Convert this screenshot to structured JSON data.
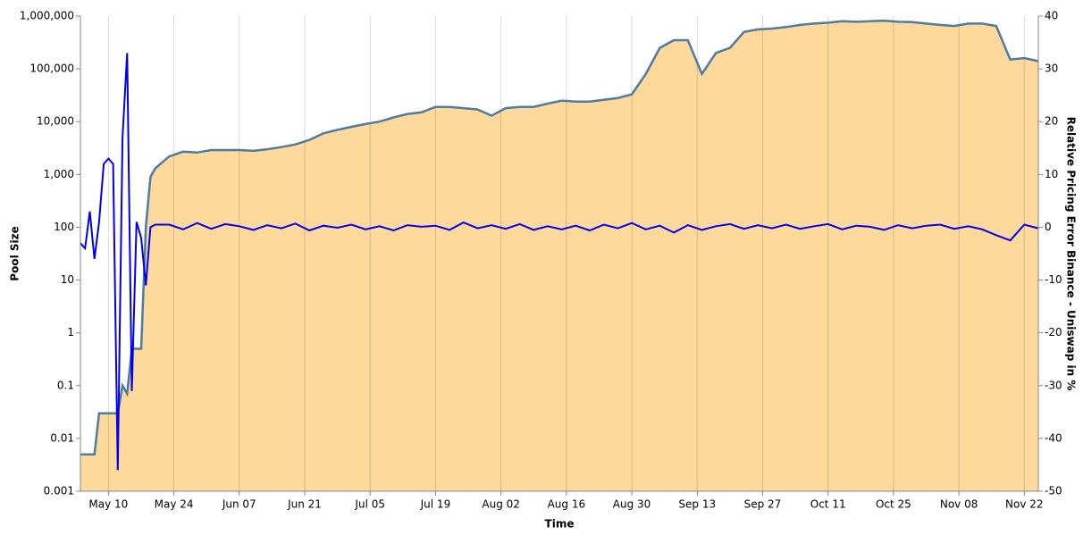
{
  "chart_data": {
    "type": "area-line",
    "x_label": "Time",
    "y_label": "Pool Size",
    "y2_label": "Relative Pricing Error Binance - Uniswap in %",
    "x": [
      "May 04",
      "May 05",
      "May 06",
      "May 07",
      "May 08",
      "May 09",
      "May 10",
      "May 11",
      "May 12",
      "May 13",
      "May 14",
      "May 15",
      "May 16",
      "May 17",
      "May 18",
      "May 19",
      "May 20",
      "May 23",
      "May 26",
      "May 29",
      "Jun 01",
      "Jun 04",
      "Jun 07",
      "Jun 10",
      "Jun 13",
      "Jun 16",
      "Jun 19",
      "Jun 22",
      "Jun 25",
      "Jun 28",
      "Jul 01",
      "Jul 04",
      "Jul 07",
      "Jul 10",
      "Jul 13",
      "Jul 16",
      "Jul 19",
      "Jul 22",
      "Jul 25",
      "Jul 28",
      "Jul 31",
      "Aug 03",
      "Aug 06",
      "Aug 09",
      "Aug 12",
      "Aug 15",
      "Aug 18",
      "Aug 21",
      "Aug 24",
      "Aug 27",
      "Aug 30",
      "Sep 02",
      "Sep 05",
      "Sep 08",
      "Sep 11",
      "Sep 14",
      "Sep 17",
      "Sep 20",
      "Sep 23",
      "Sep 26",
      "Sep 29",
      "Oct 02",
      "Oct 05",
      "Oct 08",
      "Oct 11",
      "Oct 14",
      "Oct 17",
      "Oct 20",
      "Oct 23",
      "Oct 26",
      "Oct 29",
      "Nov 01",
      "Nov 04",
      "Nov 07",
      "Nov 10",
      "Nov 13",
      "Nov 16",
      "Nov 19",
      "Nov 22",
      "Nov 25"
    ],
    "series": [
      {
        "color": "#4e7ba6",
        "fill": "#fdd99b",
        "axis": "y",
        "values": [
          0.005,
          0.005,
          0.005,
          0.005,
          0.03,
          0.03,
          0.03,
          0.03,
          0.03,
          0.1,
          0.07,
          0.5,
          0.5,
          0.5,
          100,
          900,
          1300,
          2200,
          2700,
          2600,
          2900,
          2900,
          2900,
          2800,
          3000,
          3300,
          3700,
          4500,
          6000,
          7000,
          8000,
          9000,
          10000,
          12000,
          14000,
          15000,
          19000,
          19000,
          18000,
          17000,
          13000,
          18000,
          19000,
          19000,
          22000,
          25000,
          24000,
          24000,
          26000,
          28000,
          33000,
          80000,
          250000,
          350000,
          350000,
          80000,
          200000,
          250000,
          500000,
          560000,
          580000,
          620000,
          680000,
          720000,
          750000,
          800000,
          780000,
          800000,
          820000,
          780000,
          770000,
          720000,
          680000,
          650000,
          720000,
          720000,
          650000,
          150000,
          160000,
          140000
        ]
      },
      {
        "color": "#0000ee",
        "axis": "y2",
        "values": [
          -3,
          -4,
          3,
          -6,
          1,
          12,
          13,
          12,
          -46,
          17,
          33,
          -31,
          1,
          -2,
          -11,
          0,
          0.5,
          0.5,
          -0.4,
          0.8,
          -0.3,
          0.6,
          0.2,
          -0.5,
          0.4,
          -0.2,
          0.7,
          -0.6,
          0.3,
          -0.1,
          0.5,
          -0.4,
          0.2,
          -0.6,
          0.4,
          0.1,
          0.3,
          -0.5,
          0.9,
          -0.2,
          0.4,
          -0.3,
          0.6,
          -0.5,
          0.2,
          -0.4,
          0.3,
          -0.6,
          0.5,
          -0.2,
          0.8,
          -0.4,
          0.3,
          -1,
          0.4,
          -0.5,
          0.2,
          0.6,
          -0.3,
          0.4,
          -0.2,
          0.5,
          -0.3,
          0.2,
          0.6,
          -0.4,
          0.3,
          0.1,
          -0.5,
          0.4,
          -0.2,
          0.3,
          0.5,
          -0.3,
          0.2,
          -0.4,
          -1.5,
          -2.5,
          0.5,
          -0.2
        ]
      }
    ],
    "xlim": [
      "May 04",
      "Nov 25"
    ],
    "xticks": [
      "May 10",
      "May 24",
      "Jun 07",
      "Jun 21",
      "Jul 05",
      "Jul 19",
      "Aug 02",
      "Aug 16",
      "Aug 30",
      "Sep 13",
      "Sep 27",
      "Oct 11",
      "Oct 25",
      "Nov 08",
      "Nov 22"
    ],
    "yscale": "log",
    "ylim": [
      0.001,
      1000000
    ],
    "yticks": [
      0.001,
      0.01,
      0.1,
      1,
      10,
      100,
      {
        "value": 1000,
        "label": "1,000"
      },
      {
        "value": 10000,
        "label": "10,000"
      },
      {
        "value": 100000,
        "label": "100,000"
      },
      {
        "value": 1000000,
        "label": "1,000,000"
      }
    ],
    "y2lim": [
      -50,
      40
    ],
    "y2ticks": [
      -50,
      -40,
      -30,
      -20,
      -10,
      0,
      10,
      20,
      30,
      40
    ],
    "grid": "x"
  }
}
